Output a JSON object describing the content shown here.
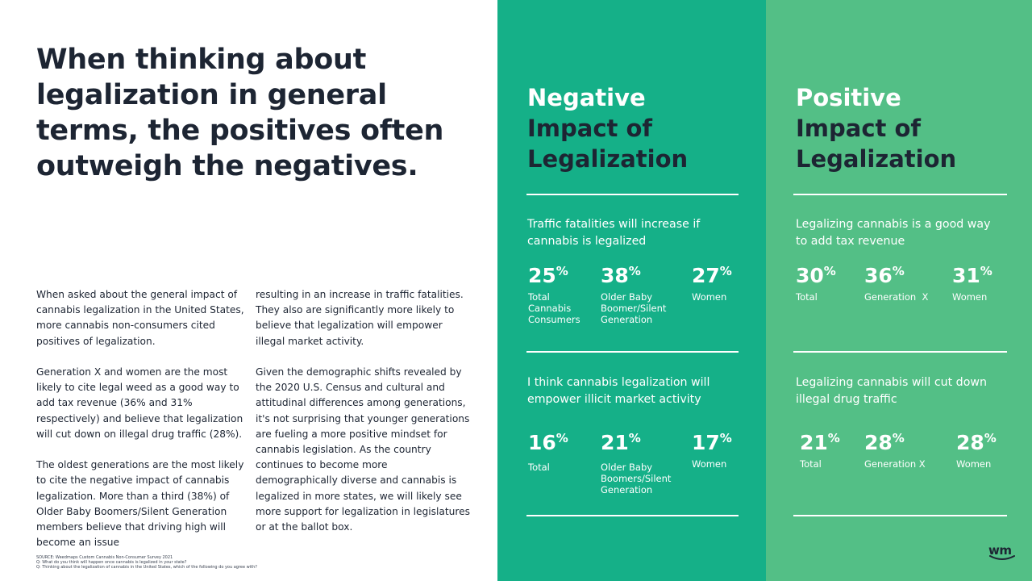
{
  "headline": "When thinking about legalization in general terms, the positives often outweigh the negatives.",
  "body": {
    "col1": [
      "When asked about the general impact of cannabis legalization in the United States, more cannabis non-consumers cited positives of legalization.",
      "Generation X and women are the most likely to cite legal weed as a good way to add tax revenue (36% and 31% respectively) and believe that legalization will cut down on illegal drug traffic (28%).",
      "The oldest generations are the most likely to cite the negative impact of cannabis legalization. More than a third (38%) of Older Baby Boomers/Silent Generation members believe that driving high will become an issue"
    ],
    "col2": [
      "resulting in an increase in traffic fatalities. They also are significantly more likely to believe that legalization will empower illegal market activity.",
      "Given the demographic shifts revealed by the 2020 U.S. Census and cultural and attitudinal differences among generations, it's not surprising that younger generations are fueling a more positive mindset for cannabis legislation. As the country continues to become more demographically diverse and cannabis is legalized in more states, we will likely see more support for legalization in legislatures or at the ballot box."
    ]
  },
  "source": [
    "SOURCE: Weedmaps Custom Cannabis Non-Consumer Survey 2021",
    "Q: What do you think will happen once cannabis is legalized in your state?",
    "Q: Thinking about the legalization of cannabis in the United States, which of the following do you agree with?"
  ],
  "negative": {
    "title_line1": "Negative",
    "title_line2": "Impact of",
    "title_line3": "Legalization",
    "q1": {
      "question": "Traffic fatalities will increase if cannabis is legalized",
      "stats": [
        {
          "value": "25",
          "unit": "%",
          "label": "Total Cannabis Consumers"
        },
        {
          "value": "38",
          "unit": "%",
          "label": "Older Baby Boomer/Silent Generation"
        },
        {
          "value": "27",
          "unit": "%",
          "label": "Women"
        }
      ]
    },
    "q2": {
      "question": "I think cannabis legalization will empower illicit market activity",
      "stats": [
        {
          "value": "16",
          "unit": "%",
          "label": "Total"
        },
        {
          "value": "21",
          "unit": "%",
          "label": "Older Baby Boomers/Silent Generation"
        },
        {
          "value": "17",
          "unit": "%",
          "label": "Women"
        }
      ]
    }
  },
  "positive": {
    "title_line1": "Positive",
    "title_line2": "Impact of",
    "title_line3": "Legalization",
    "q1": {
      "question": "Legalizing cannabis is a good way to add tax revenue",
      "stats": [
        {
          "value": "30",
          "unit": "%",
          "label": "Total"
        },
        {
          "value": "36",
          "unit": "%",
          "label": "Generation  X"
        },
        {
          "value": "31",
          "unit": "%",
          "label": "Women"
        }
      ]
    },
    "q2": {
      "question": "Legalizing cannabis will cut down illegal drug traffic",
      "stats": [
        {
          "value": "21",
          "unit": "%",
          "label": "Total"
        },
        {
          "value": "28",
          "unit": "%",
          "label": "Generation X"
        },
        {
          "value": "28",
          "unit": "%",
          "label": "Women"
        }
      ]
    }
  },
  "logo": "wm",
  "colors": {
    "negative_panel": "#15b088",
    "positive_panel": "#53bf86",
    "dark_text": "#1d2533"
  }
}
